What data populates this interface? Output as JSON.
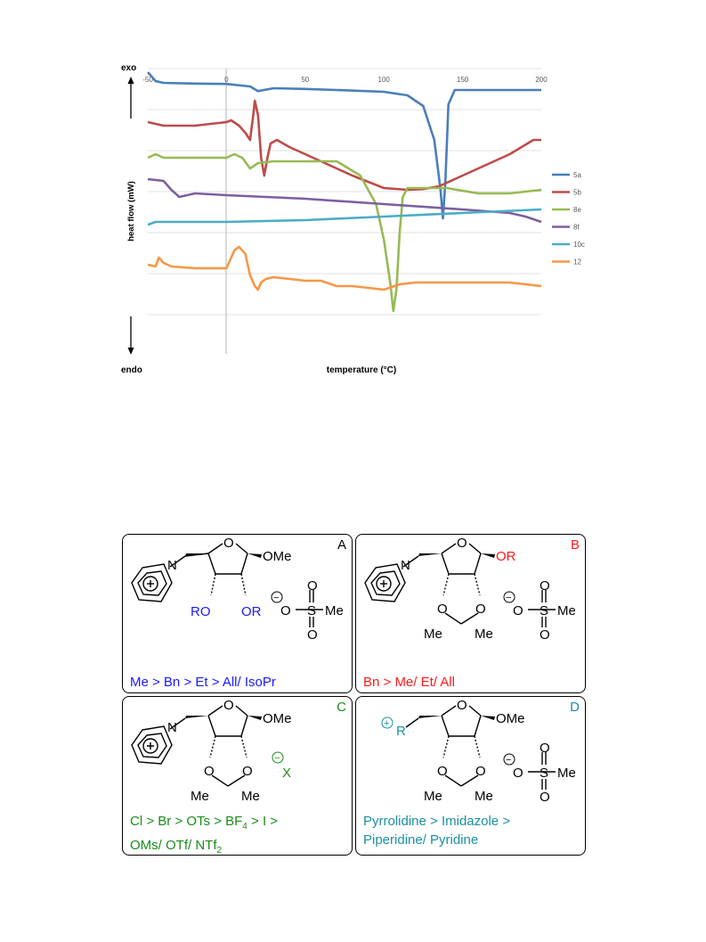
{
  "chart_data": {
    "type": "line",
    "title": "",
    "xlabel": "temperature (°C)",
    "ylabel": "heat flow (mW)",
    "x_ticks": [
      "-50",
      "0",
      "50",
      "100",
      "150",
      "200"
    ],
    "xlim": [
      -50,
      200
    ],
    "ylim": [
      -8,
      0
    ],
    "y_arrow_top": "exo",
    "y_arrow_bottom": "endo",
    "grid": true,
    "legend_position": "right",
    "series": [
      {
        "name": "5a",
        "color": "#4a7ebb",
        "x": [
          -50,
          -45,
          -40,
          -20,
          0,
          15,
          20,
          30,
          50,
          70,
          100,
          115,
          125,
          132,
          136,
          137.5,
          139,
          141,
          145,
          160,
          180,
          200
        ],
        "y": [
          -0.1,
          -0.35,
          -0.4,
          -0.42,
          -0.43,
          -0.5,
          -0.63,
          -0.55,
          -0.57,
          -0.6,
          -0.65,
          -0.75,
          -1.05,
          -2.0,
          -3.4,
          -4.2,
          -3.2,
          -1.0,
          -0.6,
          -0.6,
          -0.6,
          -0.6
        ]
      },
      {
        "name": "5b",
        "color": "#be4b48",
        "x": [
          -50,
          -40,
          -20,
          0,
          3,
          8,
          12,
          15,
          17,
          18,
          20,
          22,
          24,
          26,
          28,
          32,
          40,
          60,
          80,
          100,
          115,
          125,
          135,
          150,
          165,
          180,
          195,
          200
        ],
        "y": [
          -1.5,
          -1.6,
          -1.6,
          -1.5,
          -1.45,
          -1.6,
          -1.8,
          -2.0,
          -1.3,
          -0.9,
          -1.3,
          -2.5,
          -3.0,
          -2.5,
          -2.1,
          -2.0,
          -2.2,
          -2.6,
          -3.0,
          -3.35,
          -3.4,
          -3.38,
          -3.3,
          -3.0,
          -2.7,
          -2.4,
          -2.0,
          -2.0
        ]
      },
      {
        "name": "8e",
        "color": "#98b954",
        "x": [
          -50,
          -45,
          -40,
          -20,
          0,
          5,
          10,
          15,
          20,
          30,
          50,
          70,
          85,
          95,
          100,
          104,
          106,
          108,
          110,
          112,
          115,
          120,
          140,
          160,
          180,
          200
        ],
        "y": [
          -2.5,
          -2.4,
          -2.5,
          -2.5,
          -2.5,
          -2.4,
          -2.5,
          -2.8,
          -2.65,
          -2.6,
          -2.6,
          -2.6,
          -3.0,
          -3.8,
          -4.8,
          -6.0,
          -6.8,
          -6.2,
          -4.6,
          -3.6,
          -3.35,
          -3.35,
          -3.35,
          -3.5,
          -3.5,
          -3.4
        ]
      },
      {
        "name": "8f",
        "color": "#7d5fa0",
        "x": [
          -50,
          -40,
          -35,
          -30,
          -20,
          0,
          50,
          100,
          150,
          180,
          190,
          200
        ],
        "y": [
          -3.1,
          -3.15,
          -3.4,
          -3.6,
          -3.5,
          -3.55,
          -3.65,
          -3.8,
          -3.95,
          -4.05,
          -4.15,
          -4.3
        ]
      },
      {
        "name": "10c",
        "color": "#4bacc6",
        "x": [
          -50,
          -45,
          -40,
          0,
          50,
          100,
          150,
          200
        ],
        "y": [
          -4.38,
          -4.3,
          -4.3,
          -4.3,
          -4.25,
          -4.15,
          -4.05,
          -3.95
        ]
      },
      {
        "name": "12",
        "color": "#f79646",
        "x": [
          -50,
          -45,
          -43,
          -40,
          -35,
          -20,
          0,
          3,
          5,
          8,
          12,
          15,
          18,
          20,
          22,
          25,
          30,
          40,
          50,
          60,
          70,
          80,
          90,
          100,
          110,
          120,
          140,
          160,
          180,
          200
        ],
        "y": [
          -5.5,
          -5.55,
          -5.3,
          -5.45,
          -5.55,
          -5.6,
          -5.6,
          -5.3,
          -5.1,
          -5.0,
          -5.2,
          -5.8,
          -6.1,
          -6.2,
          -6.0,
          -5.9,
          -5.85,
          -5.9,
          -5.95,
          -5.95,
          -6.1,
          -6.1,
          -6.15,
          -6.2,
          -6.05,
          -6.0,
          -6.0,
          -6.0,
          -6.0,
          -6.1
        ]
      }
    ]
  },
  "scheme": {
    "panels": [
      {
        "letter": "A",
        "letter_color": "#1a1aff",
        "caption_lines": [
          "Me > Bn > Et > All/ IsoPr"
        ],
        "caption_color": "#1a1aff",
        "labels": {
          "n": "N",
          "o_ring": "O",
          "anomeric": "OMe",
          "ro": "RO",
          "or": "OR",
          "s": "S",
          "o_top": "O",
          "o_bot": "O",
          "o_left": "O",
          "me": "Me",
          "minus": "−"
        }
      },
      {
        "letter": "B",
        "letter_color": "#ff1a1a",
        "caption_lines": [
          "Bn > Me/ Et/ All"
        ],
        "caption_color": "#ff1a1a",
        "labels": {
          "n": "N",
          "o_ring": "O",
          "anomeric": "OR",
          "o1": "O",
          "o2": "O",
          "me1": "Me",
          "me2": "Me",
          "s": "S",
          "o_top": "O",
          "o_bot": "O",
          "o_left": "O",
          "me": "Me",
          "minus": "−"
        }
      },
      {
        "letter": "C",
        "letter_color": "#1a8c1a",
        "caption_lines": [
          "Cl > Br > OTs > BF4 > I >",
          "OMs/ OTf/ NTf2"
        ],
        "caption_color": "#1a8c1a",
        "labels": {
          "n": "N",
          "o_ring": "O",
          "anomeric": "OMe",
          "o1": "O",
          "o2": "O",
          "me1": "Me",
          "me2": "Me",
          "x": "X",
          "minus": "−"
        }
      },
      {
        "letter": "D",
        "letter_color": "#1a8fa0",
        "caption_lines": [
          "Pyrrolidine > Imidazole >",
          "Piperidine/ Pyridine"
        ],
        "caption_color": "#1a8fa0",
        "labels": {
          "r": "R",
          "o_ring": "O",
          "anomeric": "OMe",
          "o1": "O",
          "o2": "O",
          "me1": "Me",
          "me2": "Me",
          "s": "S",
          "o_top": "O",
          "o_bot": "O",
          "o_left": "O",
          "me": "Me",
          "minus": "−",
          "plus": "+"
        }
      }
    ]
  }
}
